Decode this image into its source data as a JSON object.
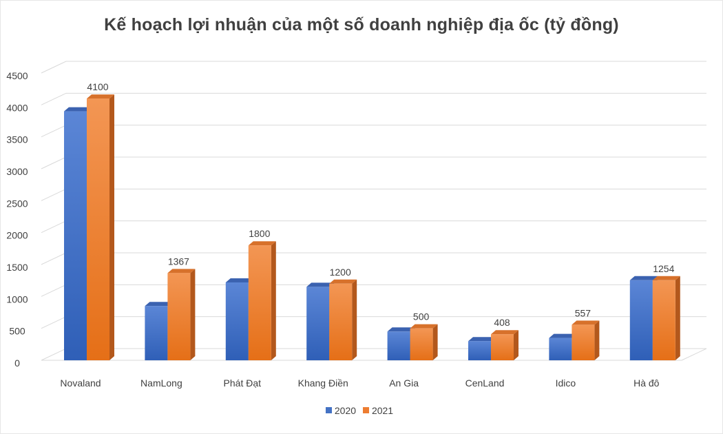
{
  "chart_data": {
    "type": "bar",
    "title": "Kế hoạch lợi nhuận của một số doanh nghiệp địa ốc (tỷ đồng)",
    "categories": [
      "Novaland",
      "NamLong",
      "Phát Đạt",
      "Khang Điền",
      "An Gia",
      "CenLand",
      "Idico",
      "Hà đô"
    ],
    "series": [
      {
        "name": "2020",
        "color": "#4472C4",
        "values": [
          3900,
          850,
          1220,
          1150,
          450,
          300,
          350,
          1254
        ]
      },
      {
        "name": "2021",
        "color": "#ED7D31",
        "values": [
          4100,
          1367,
          1800,
          1200,
          500,
          408,
          557,
          1254
        ]
      }
    ],
    "data_labels": {
      "series": "2021",
      "values": [
        "4100",
        "1367",
        "1800",
        "1200",
        "500",
        "408",
        "557",
        "1254"
      ]
    },
    "y_ticks": [
      "0",
      "500",
      "1000",
      "1500",
      "2000",
      "2500",
      "3000",
      "3500",
      "4000",
      "4500"
    ],
    "ylim": [
      0,
      4500
    ],
    "grid": true,
    "legend_position": "bottom"
  }
}
